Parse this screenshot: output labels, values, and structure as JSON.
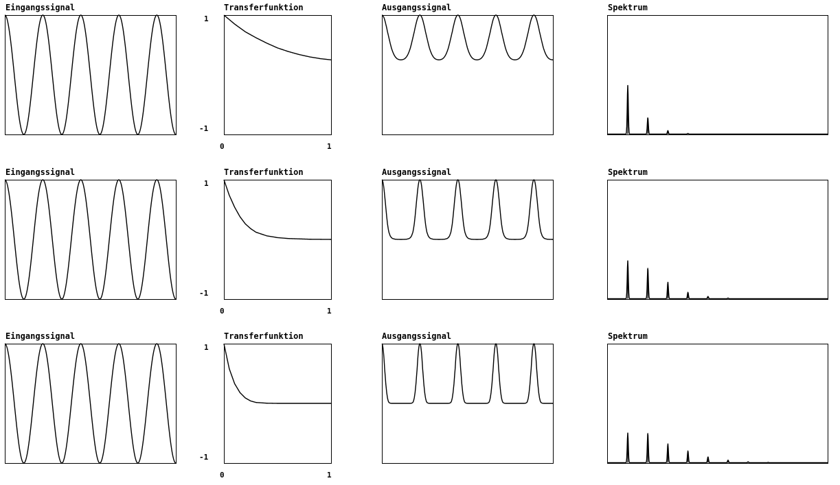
{
  "titles": {
    "input": "Eingangssignal",
    "transfer": "Transferfunktion",
    "output": "Ausgangssignal",
    "spectrum": "Spektrum"
  },
  "tick_labels": {
    "y_top": "1",
    "y_bottom": "-1",
    "x_left": "0",
    "x_right": "1"
  },
  "chart_data": [
    {
      "row": 1,
      "panels": [
        {
          "type": "line",
          "title": "Eingangssignal",
          "signal": "cosine",
          "cycles": 4.5,
          "ylim": [
            -1,
            1
          ]
        },
        {
          "type": "line",
          "title": "Transferfunktion",
          "xlim": [
            0,
            1
          ],
          "ylim": [
            -1,
            1
          ],
          "x": [
            0,
            0.1,
            0.2,
            0.3,
            0.4,
            0.5,
            0.6,
            0.7,
            0.8,
            0.9,
            1.0
          ],
          "y": [
            1.0,
            0.85,
            0.72,
            0.62,
            0.53,
            0.45,
            0.39,
            0.34,
            0.3,
            0.27,
            0.25
          ],
          "xticks": [
            "0",
            "1"
          ],
          "yticks": [
            "1",
            "-1"
          ]
        },
        {
          "type": "line",
          "title": "Ausgangssignal",
          "signal": "transfer(cosine)",
          "cycles": 4.5,
          "ylim": [
            -1,
            1
          ]
        },
        {
          "type": "line",
          "title": "Spektrum",
          "ylim": [
            0,
            1
          ],
          "peak_heights": [
            0.41,
            0.14,
            0.03,
            0.006
          ],
          "grid": false
        }
      ]
    },
    {
      "row": 2,
      "panels": [
        {
          "type": "line",
          "title": "Eingangssignal",
          "signal": "cosine",
          "cycles": 4.5,
          "ylim": [
            -1,
            1
          ]
        },
        {
          "type": "line",
          "title": "Transferfunktion",
          "xlim": [
            0,
            1
          ],
          "ylim": [
            -1,
            1
          ],
          "x": [
            0,
            0.05,
            0.1,
            0.15,
            0.2,
            0.25,
            0.3,
            0.4,
            0.5,
            0.6,
            0.8,
            1.0
          ],
          "y": [
            1.0,
            0.74,
            0.54,
            0.38,
            0.26,
            0.18,
            0.12,
            0.06,
            0.03,
            0.015,
            0.003,
            0.0
          ],
          "xticks": [
            "0",
            "1"
          ],
          "yticks": [
            "1",
            "-1"
          ]
        },
        {
          "type": "line",
          "title": "Ausgangssignal",
          "signal": "transfer(cosine)",
          "cycles": 4.5,
          "ylim": [
            -1,
            1
          ]
        },
        {
          "type": "line",
          "title": "Spektrum",
          "ylim": [
            0,
            1
          ],
          "peak_heights": [
            0.32,
            0.26,
            0.14,
            0.055,
            0.02,
            0.006
          ],
          "grid": false
        }
      ]
    },
    {
      "row": 3,
      "panels": [
        {
          "type": "line",
          "title": "Eingangssignal",
          "signal": "cosine",
          "cycles": 4.5,
          "ylim": [
            -1,
            1
          ]
        },
        {
          "type": "line",
          "title": "Transferfunktion",
          "xlim": [
            0,
            1
          ],
          "ylim": [
            -1,
            1
          ],
          "x": [
            0,
            0.05,
            0.1,
            0.15,
            0.2,
            0.25,
            0.3,
            0.4,
            0.5,
            0.6,
            0.8,
            1.0
          ],
          "y": [
            1.0,
            0.58,
            0.33,
            0.18,
            0.09,
            0.04,
            0.015,
            0.003,
            0.0,
            0.0,
            0.0,
            0.0
          ],
          "xticks": [
            "0",
            "1"
          ],
          "yticks": [
            "1",
            "-1"
          ]
        },
        {
          "type": "line",
          "title": "Ausgangssignal",
          "signal": "transfer(cosine)",
          "cycles": 4.5,
          "ylim": [
            -1,
            1
          ]
        },
        {
          "type": "line",
          "title": "Spektrum",
          "ylim": [
            0,
            1
          ],
          "peak_heights": [
            0.25,
            0.25,
            0.16,
            0.1,
            0.05,
            0.022,
            0.008,
            0.003
          ],
          "grid": false
        }
      ]
    }
  ]
}
